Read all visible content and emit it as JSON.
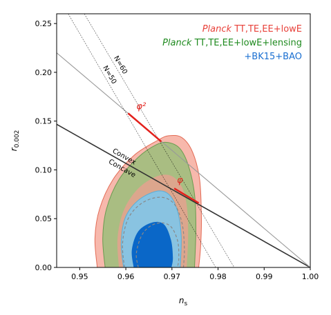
{
  "chart_data": {
    "type": "contour",
    "xlabel_main": "n",
    "xlabel_sub": "s",
    "ylabel_main": "r",
    "ylabel_sub": "0.002",
    "xlim": [
      0.945,
      1.0
    ],
    "ylim": [
      0.0,
      0.26
    ],
    "xticks": [
      0.95,
      0.96,
      0.97,
      0.98,
      0.99,
      1.0
    ],
    "xtick_labels": [
      "0.95",
      "0.96",
      "0.97",
      "0.98",
      "0.99",
      "1.00"
    ],
    "yticks": [
      0.0,
      0.05,
      0.1,
      0.15,
      0.2,
      0.25
    ],
    "ytick_labels": [
      "0.00",
      "0.05",
      "0.10",
      "0.15",
      "0.20",
      "0.25"
    ],
    "legend_placement": "top-right",
    "legend": [
      {
        "italic": "Planck",
        "text": " TT,TE,EE+lowE",
        "color": "#e8413a"
      },
      {
        "italic": "Planck",
        "text": " TT,TE,EE+lowE+lensing",
        "color": "#1f8a1f"
      },
      {
        "italic": "",
        "text": "+BK15+BAO",
        "color": "#1a6fd1"
      }
    ],
    "series": [
      {
        "fill": "#f4a090",
        "fill_opacity": 0.75,
        "stroke": "#e36b55",
        "points": [
          [
            0.9538,
            0.0
          ],
          [
            0.9533,
            0.03
          ],
          [
            0.9543,
            0.06
          ],
          [
            0.9572,
            0.09
          ],
          [
            0.9618,
            0.115
          ],
          [
            0.9668,
            0.13
          ],
          [
            0.9693,
            0.135
          ],
          [
            0.9722,
            0.133
          ],
          [
            0.9745,
            0.118
          ],
          [
            0.976,
            0.09
          ],
          [
            0.9764,
            0.05
          ],
          [
            0.9762,
            0.02
          ],
          [
            0.9758,
            0.0
          ]
        ]
      },
      {
        "fill": "#8fbf74",
        "fill_opacity": 0.75,
        "stroke": "#6a9a50",
        "points": [
          [
            0.9555,
            0.0
          ],
          [
            0.955,
            0.03
          ],
          [
            0.9558,
            0.06
          ],
          [
            0.9585,
            0.09
          ],
          [
            0.9627,
            0.113
          ],
          [
            0.9667,
            0.126
          ],
          [
            0.9692,
            0.128
          ],
          [
            0.9717,
            0.122
          ],
          [
            0.9736,
            0.104
          ],
          [
            0.9749,
            0.075
          ],
          [
            0.9752,
            0.04
          ],
          [
            0.9749,
            0.0
          ]
        ]
      },
      {
        "fill": "#e8a090",
        "fill_opacity": 0.8,
        "stroke": "none",
        "points": [
          [
            0.9585,
            0.0
          ],
          [
            0.9582,
            0.03
          ],
          [
            0.9595,
            0.058
          ],
          [
            0.9625,
            0.08
          ],
          [
            0.9665,
            0.093
          ],
          [
            0.9698,
            0.094
          ],
          [
            0.9722,
            0.082
          ],
          [
            0.9733,
            0.06
          ],
          [
            0.9735,
            0.03
          ],
          [
            0.9732,
            0.0
          ]
        ]
      },
      {
        "fill": "#7fc6ea",
        "fill_opacity": 0.9,
        "stroke": "#5aaed8",
        "points": [
          [
            0.9595,
            0.0
          ],
          [
            0.959,
            0.025
          ],
          [
            0.9598,
            0.05
          ],
          [
            0.9625,
            0.068
          ],
          [
            0.9665,
            0.078
          ],
          [
            0.9693,
            0.075
          ],
          [
            0.9712,
            0.058
          ],
          [
            0.972,
            0.032
          ],
          [
            0.9718,
            0.0
          ]
        ]
      },
      {
        "fill": "#0a67c8",
        "fill_opacity": 1.0,
        "stroke": "none",
        "points": [
          [
            0.9617,
            0.0
          ],
          [
            0.9613,
            0.018
          ],
          [
            0.9627,
            0.037
          ],
          [
            0.9657,
            0.046
          ],
          [
            0.9683,
            0.044
          ],
          [
            0.9698,
            0.028
          ],
          [
            0.9702,
            0.01
          ],
          [
            0.9699,
            0.0
          ]
        ]
      }
    ],
    "dashed_contours": [
      {
        "stroke": "#888888",
        "points": [
          [
            0.9597,
            0.0
          ],
          [
            0.9593,
            0.025
          ],
          [
            0.9605,
            0.05
          ],
          [
            0.9635,
            0.066
          ],
          [
            0.9675,
            0.072
          ],
          [
            0.9705,
            0.065
          ],
          [
            0.9722,
            0.045
          ],
          [
            0.9727,
            0.02
          ],
          [
            0.9725,
            0.0
          ]
        ]
      },
      {
        "stroke": "#888888",
        "points": [
          [
            0.9627,
            0.0
          ],
          [
            0.9623,
            0.015
          ],
          [
            0.9637,
            0.035
          ],
          [
            0.9665,
            0.045
          ],
          [
            0.9695,
            0.043
          ],
          [
            0.9712,
            0.028
          ],
          [
            0.9715,
            0.01
          ],
          [
            0.9712,
            0.0
          ]
        ]
      }
    ],
    "lines": [
      {
        "kind": "convex_concave",
        "color": "#333333",
        "width": 1.6,
        "p1": [
          0.945,
          0.1467
        ],
        "p2": [
          1.0,
          0.0
        ],
        "label_above": "Convex",
        "label_below": "Concave"
      },
      {
        "kind": "phi2_line",
        "color": "#999999",
        "width": 1.1,
        "p1": [
          0.945,
          0.22
        ],
        "p2": [
          1.0,
          0.0
        ]
      },
      {
        "kind": "efold",
        "color": "#000000",
        "width": 0.5,
        "dash": "2,1.5",
        "p1": [
          0.9475,
          0.26
        ],
        "p2": [
          0.9795,
          0.0
        ],
        "label": "N=50"
      },
      {
        "kind": "efold",
        "color": "#000000",
        "width": 0.5,
        "dash": "2,1.5",
        "p1": [
          0.951,
          0.26
        ],
        "p2": [
          0.9835,
          0.0
        ],
        "label": "N=60"
      }
    ],
    "red_segments": [
      {
        "label": "φ²",
        "p1": [
          0.9605,
          0.158
        ],
        "p2": [
          0.9677,
          0.129
        ]
      },
      {
        "label": "φ",
        "p1": [
          0.9705,
          0.081
        ],
        "p2": [
          0.9758,
          0.066
        ]
      }
    ]
  }
}
